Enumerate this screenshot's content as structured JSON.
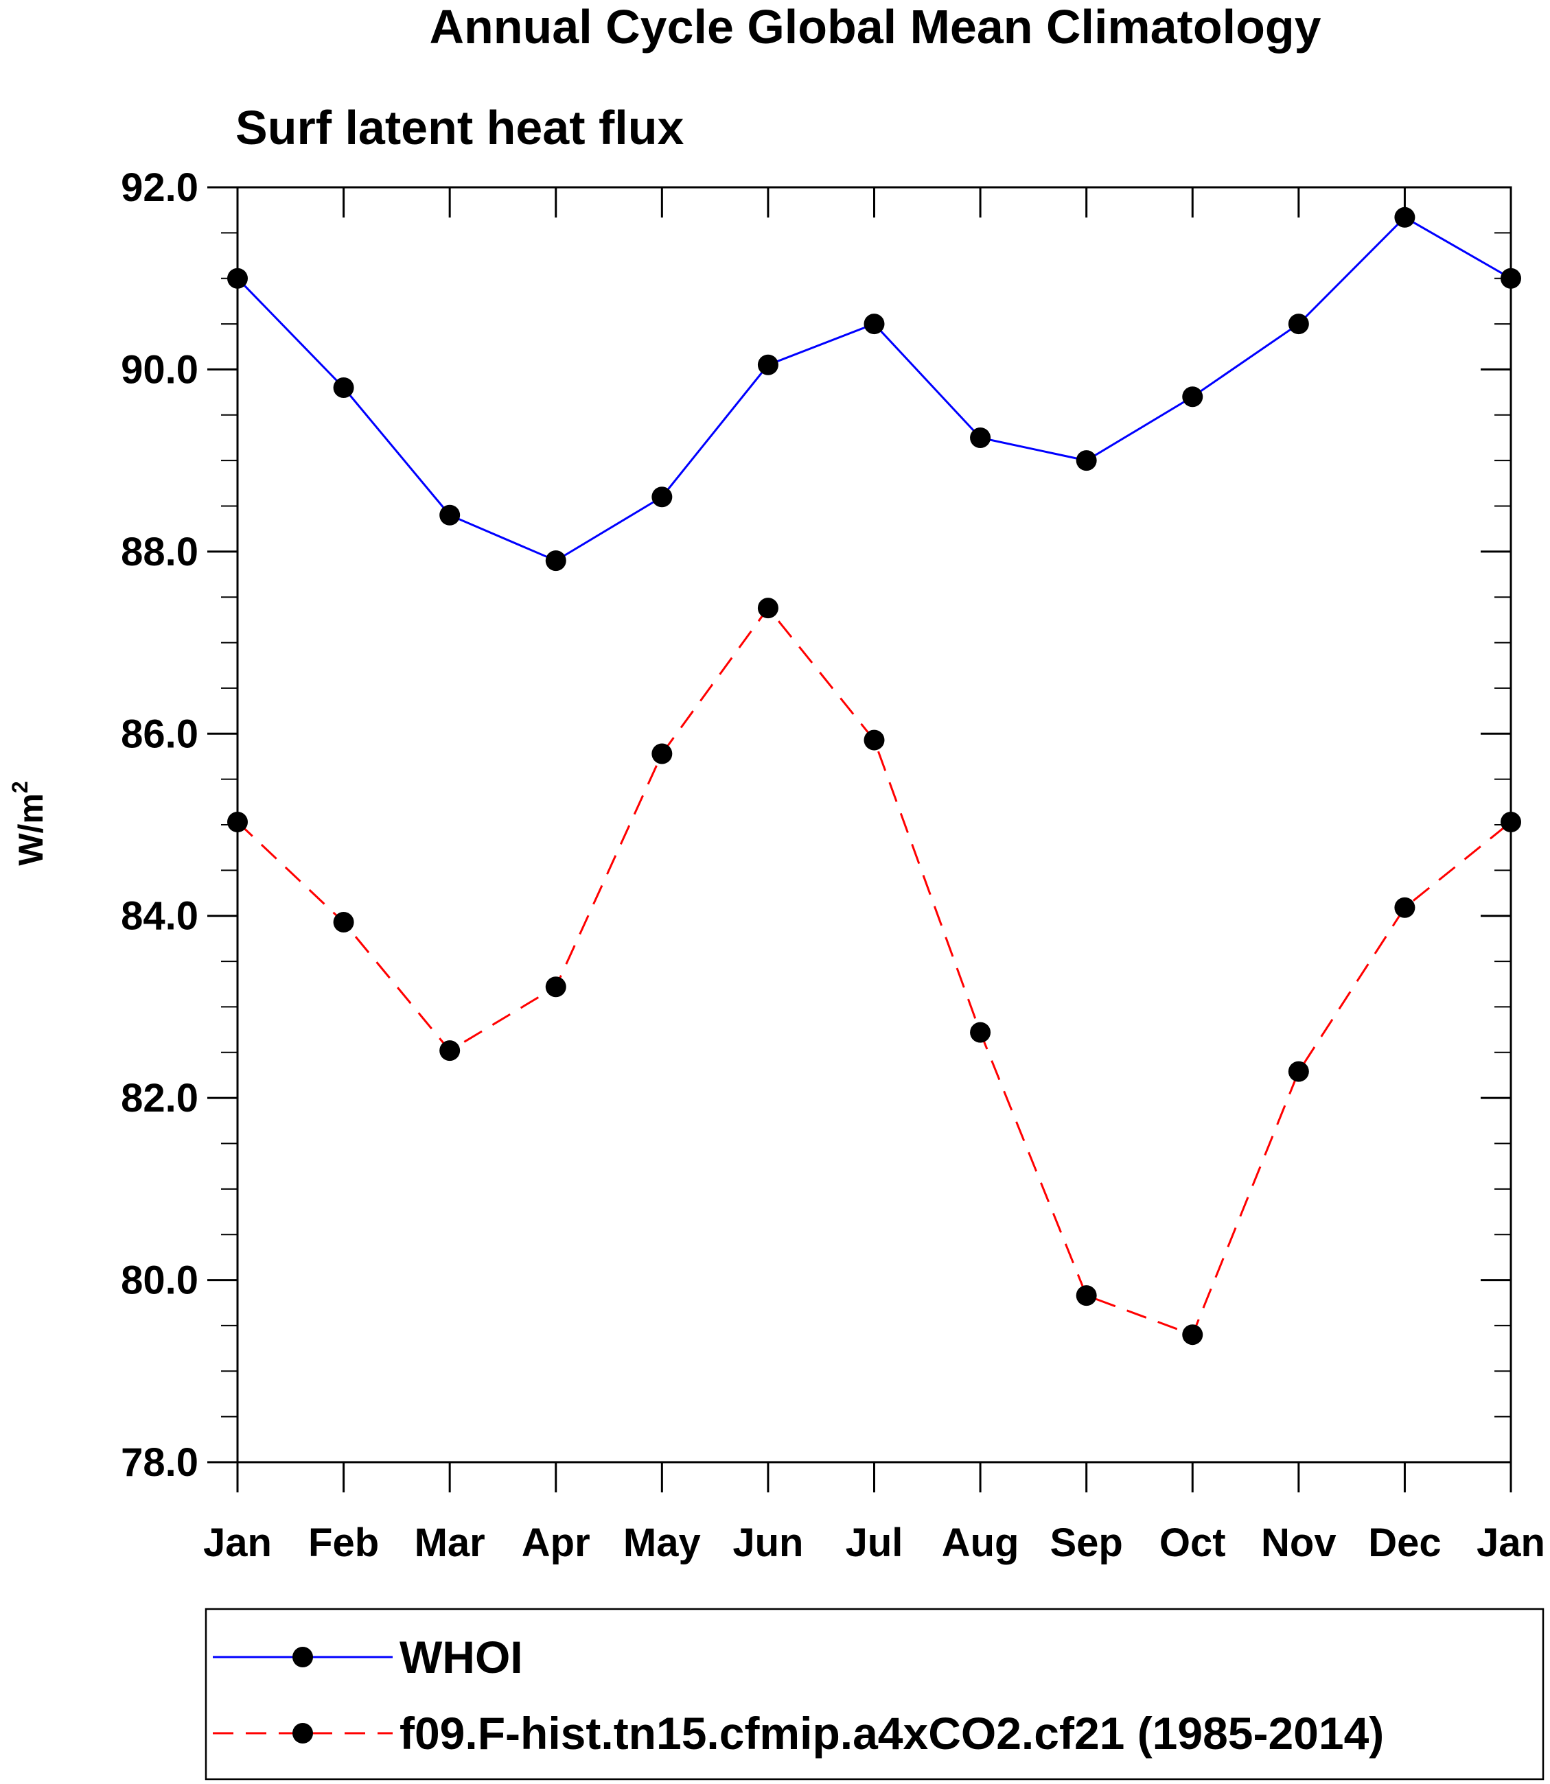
{
  "chart_data": {
    "type": "line",
    "title": "Annual Cycle Global Mean Climatology",
    "subtitle": "Surf latent heat flux",
    "ylabel": "W/m",
    "ylabel_sup": "2",
    "xlabel": "",
    "categories": [
      "Jan",
      "Feb",
      "Mar",
      "Apr",
      "May",
      "Jun",
      "Jul",
      "Aug",
      "Sep",
      "Oct",
      "Nov",
      "Dec",
      "Jan"
    ],
    "ylim": [
      78.0,
      92.0
    ],
    "yticks": [
      "78.0",
      "80.0",
      "82.0",
      "84.0",
      "86.0",
      "88.0",
      "90.0",
      "92.0"
    ],
    "grid": false,
    "legend_position": "bottom",
    "series": [
      {
        "name": "WHOI",
        "color": "#0000ff",
        "dash": "solid",
        "marker": "circle",
        "values": [
          91.0,
          89.8,
          88.4,
          87.9,
          88.6,
          90.05,
          90.5,
          89.25,
          89.0,
          89.7,
          90.5,
          91.67,
          91.0
        ]
      },
      {
        "name": "f09.F-hist.tn15.cfmip.a4xCO2.cf21 (1985-2014)",
        "color": "#ff0000",
        "dash": "dashed",
        "marker": "circle",
        "values": [
          85.03,
          83.93,
          82.52,
          83.22,
          85.78,
          87.38,
          85.93,
          82.72,
          79.83,
          79.4,
          82.29,
          84.09,
          85.03
        ]
      }
    ]
  }
}
